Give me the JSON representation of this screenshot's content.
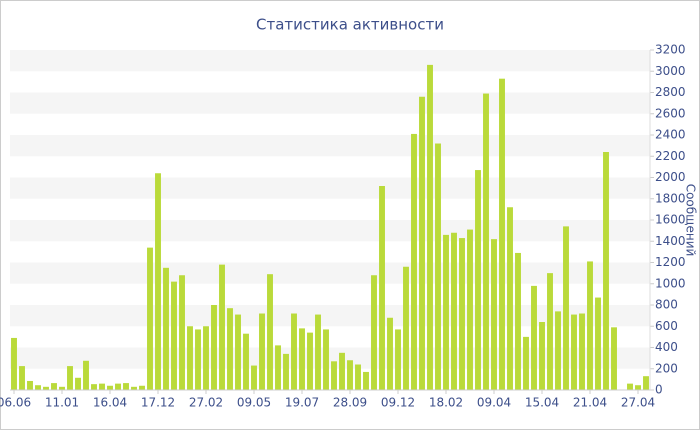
{
  "chart_data": {
    "type": "bar",
    "title": "Статистика активности",
    "y_label": "Сообщений",
    "categories": [
      "06.06",
      null,
      null,
      null,
      null,
      null,
      "11.01",
      null,
      null,
      null,
      null,
      null,
      "16.04",
      null,
      null,
      null,
      null,
      null,
      "17.12",
      null,
      null,
      null,
      null,
      null,
      "27.02",
      null,
      null,
      null,
      null,
      null,
      "09.05",
      null,
      null,
      null,
      null,
      null,
      "19.07",
      null,
      null,
      null,
      null,
      null,
      "28.09",
      null,
      null,
      null,
      null,
      null,
      "09.12",
      null,
      null,
      null,
      null,
      null,
      "18.02",
      null,
      null,
      null,
      null,
      null,
      "09.04",
      null,
      null,
      null,
      null,
      null,
      "15.04",
      null,
      null,
      null,
      null,
      null,
      "21.04",
      null,
      null,
      null,
      null,
      null,
      "27.04",
      null
    ],
    "values": [
      490,
      225,
      85,
      45,
      30,
      65,
      30,
      225,
      115,
      275,
      55,
      60,
      40,
      60,
      65,
      30,
      40,
      1340,
      2040,
      1150,
      1020,
      1080,
      600,
      570,
      600,
      800,
      1180,
      770,
      710,
      530,
      230,
      720,
      1090,
      420,
      340,
      720,
      580,
      540,
      710,
      570,
      270,
      350,
      280,
      240,
      170,
      1080,
      1920,
      680,
      570,
      1160,
      2410,
      2760,
      3060,
      2320,
      1460,
      1480,
      1430,
      1510,
      2070,
      2790,
      1420,
      2930,
      1720,
      1290,
      500,
      980,
      640,
      1100,
      740,
      1540,
      710,
      720,
      1210,
      870,
      2240,
      590,
      0,
      60,
      45,
      130
    ],
    "color": "#bada3a",
    "ylim": [
      0,
      3200
    ],
    "yticks": [
      0,
      200,
      400,
      600,
      800,
      1000,
      1200,
      1400,
      1600,
      1800,
      2000,
      2200,
      2400,
      2600,
      2800,
      3000,
      3200
    ],
    "grid": true
  }
}
